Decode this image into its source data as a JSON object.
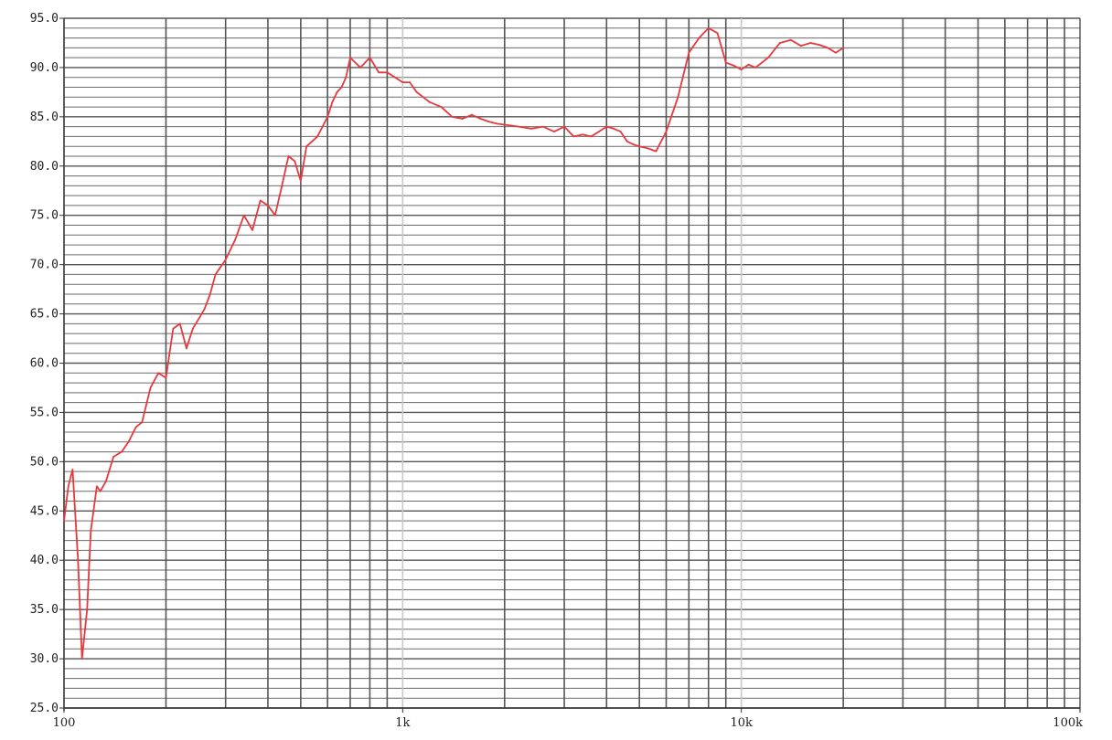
{
  "chart_data": {
    "type": "line",
    "title": "",
    "xlabel": "",
    "ylabel": "",
    "x_scale": "log",
    "xlim": [
      100,
      100000
    ],
    "ylim": [
      25,
      95
    ],
    "y_ticks": [
      "95.0",
      "90.0",
      "85.0",
      "80.0",
      "75.0",
      "70.0",
      "65.0",
      "60.0",
      "55.0",
      "50.0",
      "45.0",
      "40.0",
      "35.0",
      "30.0",
      "25.0"
    ],
    "x_ticks": [
      {
        "value": 100,
        "label": "100"
      },
      {
        "value": 1000,
        "label": "1k"
      },
      {
        "value": 10000,
        "label": "10k"
      },
      {
        "value": 100000,
        "label": "100k"
      }
    ],
    "grid": true,
    "colors": {
      "line": "#e8383d",
      "grid_major": "#555555",
      "grid_minor": "#6a6a6a",
      "grid_decade": "#c8c8c8"
    },
    "series": [
      {
        "x": [
          100,
          103,
          106,
          110,
          113,
          117,
          120,
          125,
          128,
          133,
          140,
          148,
          155,
          163,
          170,
          180,
          190,
          200,
          210,
          220,
          230,
          240,
          250,
          260,
          270,
          280,
          300,
          320,
          340,
          360,
          380,
          400,
          420,
          440,
          460,
          480,
          500,
          520,
          540,
          560,
          580,
          600,
          620,
          640,
          660,
          680,
          700,
          750,
          800,
          850,
          900,
          950,
          1000,
          1050,
          1100,
          1150,
          1200,
          1300,
          1400,
          1500,
          1600,
          1700,
          1800,
          1900,
          2000,
          2200,
          2400,
          2600,
          2800,
          3000,
          3200,
          3400,
          3600,
          3800,
          4000,
          4200,
          4400,
          4600,
          4800,
          5000,
          5300,
          5600,
          6000,
          6500,
          7000,
          7500,
          8000,
          8500,
          9000,
          9500,
          10000,
          10500,
          11000,
          11500,
          12000,
          13000,
          14000,
          15000,
          16000,
          17000,
          18000,
          19000,
          20000
        ],
        "values": [
          44.0,
          47.5,
          49.2,
          40.0,
          30.0,
          35.0,
          43.0,
          47.5,
          47.0,
          48.0,
          50.5,
          51.0,
          52.0,
          53.5,
          54.0,
          57.5,
          59.0,
          58.5,
          63.5,
          64.0,
          61.5,
          63.5,
          64.5,
          65.5,
          67.0,
          69.0,
          70.5,
          72.5,
          75.0,
          73.5,
          76.5,
          76.0,
          75.0,
          78.0,
          81.0,
          80.5,
          78.5,
          82.0,
          82.5,
          83.0,
          84.0,
          85.0,
          86.5,
          87.5,
          88.0,
          89.0,
          91.0,
          90.0,
          91.0,
          89.5,
          89.5,
          89.0,
          88.5,
          88.5,
          87.5,
          87.0,
          86.5,
          86.0,
          85.0,
          84.8,
          85.2,
          84.8,
          84.5,
          84.3,
          84.2,
          84.0,
          83.8,
          84.0,
          83.5,
          84.0,
          83.0,
          83.2,
          83.0,
          83.5,
          84.0,
          83.8,
          83.5,
          82.5,
          82.2,
          82.0,
          81.8,
          81.5,
          83.5,
          87.0,
          91.5,
          93.0,
          94.0,
          93.5,
          90.5,
          90.2,
          89.8,
          90.3,
          90.0,
          90.5,
          91.0,
          92.5,
          92.8,
          92.2,
          92.5,
          92.3,
          92.0,
          91.5,
          92.0
        ]
      }
    ]
  }
}
